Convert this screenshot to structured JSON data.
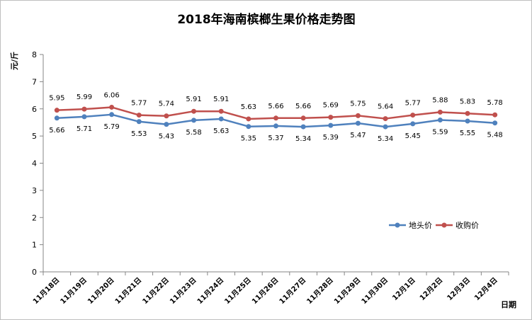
{
  "chart_data": {
    "type": "line",
    "title": "2018年海南槟榔生果价格走势图",
    "xlabel": "日期",
    "ylabel": "元/斤",
    "ylim": [
      0,
      8
    ],
    "yticks": [
      0,
      1,
      2,
      3,
      4,
      5,
      6,
      7,
      8
    ],
    "grid": false,
    "legend_position": "right",
    "categories": [
      "11月18日",
      "11月19日",
      "11月20日",
      "11月21日",
      "11月22日",
      "11月23日",
      "11月24日",
      "11月25日",
      "11月26日",
      "11月27日",
      "11月28日",
      "11月29日",
      "11月30日",
      "12月1日",
      "12月2日",
      "12月3日",
      "12月4日"
    ],
    "series": [
      {
        "name": "地头价",
        "color": "#4f81bd",
        "label_position": "below",
        "values": [
          5.66,
          5.71,
          5.79,
          5.53,
          5.43,
          5.58,
          5.63,
          5.35,
          5.37,
          5.34,
          5.39,
          5.47,
          5.34,
          5.45,
          5.59,
          5.55,
          5.48
        ]
      },
      {
        "name": "收购价",
        "color": "#c0504d",
        "label_position": "above",
        "values": [
          5.95,
          5.99,
          6.06,
          5.77,
          5.74,
          5.91,
          5.91,
          5.63,
          5.66,
          5.66,
          5.69,
          5.75,
          5.64,
          5.77,
          5.88,
          5.83,
          5.78
        ]
      }
    ]
  }
}
